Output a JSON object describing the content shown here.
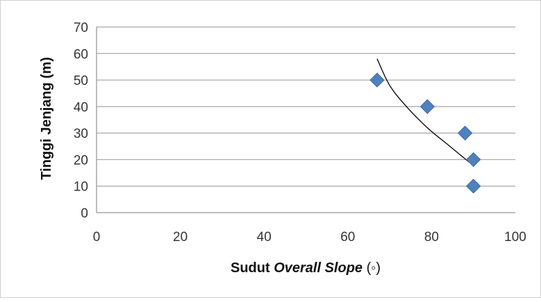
{
  "chart_data": {
    "type": "scatter",
    "xlabel_main": "Sudut ",
    "xlabel_italic": "Overall Slope",
    "xlabel_unit": " (◦)",
    "ylabel": "Tinggi  Jenjang (m)",
    "xlim": [
      0,
      100
    ],
    "ylim": [
      0,
      70
    ],
    "x_ticks": [
      "0",
      "20",
      "40",
      "60",
      "80",
      "100"
    ],
    "y_ticks": [
      "0",
      "10",
      "20",
      "30",
      "40",
      "50",
      "60",
      "70"
    ],
    "x_tick_values": [
      0,
      20,
      40,
      60,
      80,
      100
    ],
    "y_tick_values": [
      0,
      10,
      20,
      30,
      40,
      50,
      60,
      70
    ],
    "grid": "horizontal",
    "points": [
      {
        "x": 67,
        "y": 50
      },
      {
        "x": 79,
        "y": 40
      },
      {
        "x": 88,
        "y": 30
      },
      {
        "x": 90,
        "y": 20
      },
      {
        "x": 90,
        "y": 10
      }
    ],
    "trendline": {
      "type": "curve",
      "points": [
        {
          "x": 67,
          "y": 58
        },
        {
          "x": 70,
          "y": 48
        },
        {
          "x": 74,
          "y": 40
        },
        {
          "x": 79,
          "y": 32
        },
        {
          "x": 84,
          "y": 25.5
        },
        {
          "x": 89,
          "y": 19
        }
      ]
    },
    "colors": {
      "marker": "#4f81bd",
      "marker_edge": "#3a6aa5",
      "trendline": "#000000",
      "grid": "#a6a6a6",
      "axis": "#a6a6a6"
    }
  }
}
